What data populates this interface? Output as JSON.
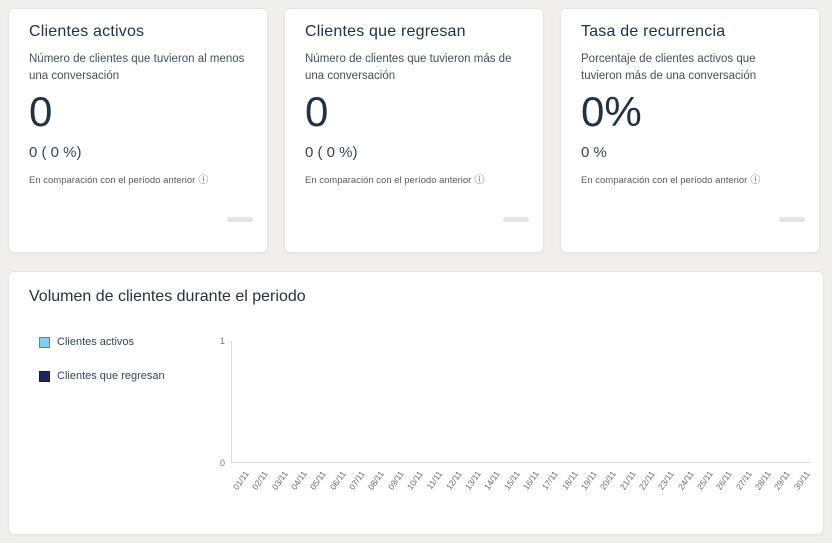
{
  "cards": [
    {
      "title": "Clientes activos",
      "description": "Número de clientes que tuvieron al menos una conversación",
      "value": "0",
      "comparison": "0 ( 0 %)",
      "note": "En comparación con el período anterior",
      "info_icon": "info-icon"
    },
    {
      "title": "Clientes que regresan",
      "description": "Número de clientes que tuvieron más de una conversación",
      "value": "0",
      "comparison": "0 ( 0 %)",
      "note": "En comparación con el período anterior",
      "info_icon": "info-icon"
    },
    {
      "title": "Tasa de recurrencia",
      "description": "Porcentaje de clientes activos que tuvieron más de una conversación",
      "value": "0%",
      "comparison": "0 %",
      "note": "En comparación con el período anterior",
      "info_icon": "info-icon"
    }
  ],
  "chart_data": {
    "type": "bar",
    "title": "Volumen de clientes durante el periodo",
    "categories": [
      "01/11",
      "02/11",
      "03/11",
      "04/11",
      "05/11",
      "06/11",
      "07/11",
      "08/11",
      "09/11",
      "10/11",
      "11/11",
      "12/11",
      "13/11",
      "14/11",
      "15/11",
      "16/11",
      "17/11",
      "18/11",
      "19/11",
      "20/11",
      "21/11",
      "22/11",
      "23/11",
      "24/11",
      "25/11",
      "26/11",
      "27/11",
      "28/11",
      "29/11",
      "30/11"
    ],
    "series": [
      {
        "name": "Clientes activos",
        "color": "#7fd0f2",
        "values": [
          0,
          0,
          0,
          0,
          0,
          0,
          0,
          0,
          0,
          0,
          0,
          0,
          0,
          0,
          0,
          0,
          0,
          0,
          0,
          0,
          0,
          0,
          0,
          0,
          0,
          0,
          0,
          0,
          0,
          0
        ]
      },
      {
        "name": "Clientes que regresan",
        "color": "#1b2a5e",
        "values": [
          0,
          0,
          0,
          0,
          0,
          0,
          0,
          0,
          0,
          0,
          0,
          0,
          0,
          0,
          0,
          0,
          0,
          0,
          0,
          0,
          0,
          0,
          0,
          0,
          0,
          0,
          0,
          0,
          0,
          0
        ]
      }
    ],
    "xlabel": "",
    "ylabel": "",
    "ylim": [
      0,
      1
    ],
    "yticks": [
      0,
      1
    ],
    "legend_position": "left",
    "grid": false
  }
}
